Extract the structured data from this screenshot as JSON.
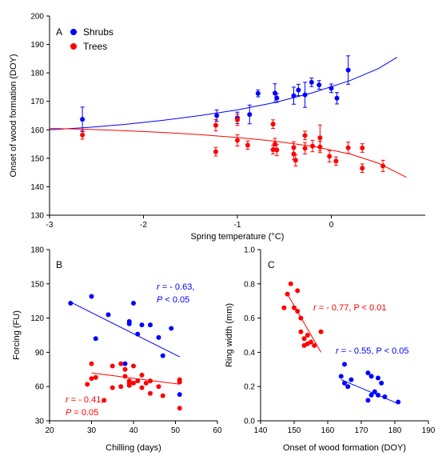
{
  "chart_data": [
    {
      "panel": "A",
      "type": "scatter",
      "xlabel": "Spring temperature (°C)",
      "ylabel": "Onset of wood formation (DOY)",
      "xlim": [
        -3,
        1
      ],
      "ylim": [
        130,
        200
      ],
      "xticks": [
        -3,
        -2,
        -1,
        0
      ],
      "yticks": [
        130,
        140,
        150,
        160,
        170,
        180,
        190,
        200
      ],
      "legend_position": "top-left",
      "series": [
        {
          "name": "Shrubs",
          "color": "#0000ff",
          "points": [
            {
              "x": -2.65,
              "y": 163.7,
              "err": 4.3
            },
            {
              "x": -1.22,
              "y": 165.0,
              "err": 2.0
            },
            {
              "x": -1.0,
              "y": 164.2,
              "err": 2.0
            },
            {
              "x": -0.87,
              "y": 165.4,
              "err": 3.3
            },
            {
              "x": -0.78,
              "y": 172.8,
              "err": 1.2
            },
            {
              "x": -0.6,
              "y": 172.9,
              "err": 3.3
            },
            {
              "x": -0.58,
              "y": 171.2,
              "err": 1.5
            },
            {
              "x": -0.4,
              "y": 172.0,
              "err": 3.0
            },
            {
              "x": -0.35,
              "y": 174.0,
              "err": 2.0
            },
            {
              "x": -0.28,
              "y": 172.3,
              "err": 4.4
            },
            {
              "x": -0.21,
              "y": 176.7,
              "err": 1.5
            },
            {
              "x": -0.13,
              "y": 175.8,
              "err": 1.5
            },
            {
              "x": 0.0,
              "y": 174.6,
              "err": 1.5
            },
            {
              "x": 0.06,
              "y": 171.1,
              "err": 2.0
            },
            {
              "x": 0.18,
              "y": 181.0,
              "err": 5.0
            }
          ],
          "fit": [
            [
              -3,
              160.0
            ],
            [
              -2.6,
              160.8
            ],
            [
              -2.2,
              161.9
            ],
            [
              -1.8,
              163.3
            ],
            [
              -1.4,
              165.0
            ],
            [
              -1.0,
              167.0
            ],
            [
              -0.6,
              169.6
            ],
            [
              -0.2,
              173.0
            ],
            [
              0.2,
              177.3
            ],
            [
              0.5,
              181.5
            ],
            [
              0.7,
              185.5
            ]
          ]
        },
        {
          "name": "Trees",
          "color": "#ff0000",
          "points": [
            {
              "x": -2.65,
              "y": 158.2,
              "err": 1.5
            },
            {
              "x": -1.23,
              "y": 161.6,
              "err": 2.0
            },
            {
              "x": -1.23,
              "y": 152.3,
              "err": 1.5
            },
            {
              "x": -1.0,
              "y": 163.5,
              "err": 2.0
            },
            {
              "x": -1.0,
              "y": 156.3,
              "err": 2.0
            },
            {
              "x": -0.89,
              "y": 154.6,
              "err": 1.5
            },
            {
              "x": -0.62,
              "y": 162.0,
              "err": 1.5
            },
            {
              "x": -0.6,
              "y": 155.0,
              "err": 2.0
            },
            {
              "x": -0.62,
              "y": 153.0,
              "err": 1.5
            },
            {
              "x": -0.58,
              "y": 152.9,
              "err": 2.0
            },
            {
              "x": -0.4,
              "y": 153.8,
              "err": 2.0
            },
            {
              "x": -0.4,
              "y": 151.5,
              "err": 2.0
            },
            {
              "x": -0.38,
              "y": 149.3,
              "err": 2.0
            },
            {
              "x": -0.28,
              "y": 153.5,
              "err": 2.0
            },
            {
              "x": -0.28,
              "y": 158.0,
              "err": 1.5
            },
            {
              "x": -0.2,
              "y": 154.3,
              "err": 2.0
            },
            {
              "x": -0.12,
              "y": 157.2,
              "err": 4.5
            },
            {
              "x": -0.12,
              "y": 154.0,
              "err": 2.0
            },
            {
              "x": -0.02,
              "y": 150.7,
              "err": 2.0
            },
            {
              "x": 0.05,
              "y": 149.0,
              "err": 1.5
            },
            {
              "x": 0.18,
              "y": 153.7,
              "err": 2.0
            },
            {
              "x": 0.33,
              "y": 153.6,
              "err": 1.5
            },
            {
              "x": 0.33,
              "y": 146.5,
              "err": 1.5
            },
            {
              "x": 0.55,
              "y": 147.3,
              "err": 2.0
            }
          ],
          "fit": [
            [
              -3,
              160.5
            ],
            [
              -2.6,
              160.2
            ],
            [
              -2.2,
              159.7
            ],
            [
              -1.8,
              159.1
            ],
            [
              -1.4,
              158.3
            ],
            [
              -1.0,
              157.3
            ],
            [
              -0.6,
              156.0
            ],
            [
              -0.2,
              154.2
            ],
            [
              0.2,
              151.5
            ],
            [
              0.5,
              148.3
            ],
            [
              0.8,
              143.3
            ]
          ]
        }
      ]
    },
    {
      "panel": "B",
      "type": "scatter",
      "xlabel": "Chilling (days)",
      "ylabel": "Forcing (FU)",
      "xlim": [
        20,
        60
      ],
      "ylim": [
        30,
        180
      ],
      "xticks": [
        20,
        30,
        40,
        50,
        60
      ],
      "yticks": [
        30,
        60,
        90,
        120,
        150,
        180
      ],
      "series": [
        {
          "color": "#0000ff",
          "points": [
            [
              25,
              133
            ],
            [
              30,
              139
            ],
            [
              31,
              102
            ],
            [
              34,
              123
            ],
            [
              38,
              80
            ],
            [
              39,
              115
            ],
            [
              39,
              117
            ],
            [
              40,
              133
            ],
            [
              41,
              106
            ],
            [
              42,
              114
            ],
            [
              44,
              114
            ],
            [
              46,
              103
            ],
            [
              47,
              87
            ],
            [
              49,
              111
            ],
            [
              51,
              53
            ]
          ],
          "fit": [
            [
              25,
              134
            ],
            [
              51,
              86
            ]
          ],
          "annotation_r": "r = - 0.63,",
          "annotation_p": "P < 0.05"
        },
        {
          "color": "#ff0000",
          "points": [
            [
              29,
              62
            ],
            [
              30,
              80
            ],
            [
              30,
              67
            ],
            [
              31,
              68
            ],
            [
              33,
              48
            ],
            [
              35,
              59
            ],
            [
              35,
              78
            ],
            [
              37,
              80
            ],
            [
              37,
              60
            ],
            [
              38,
              69
            ],
            [
              38,
              75
            ],
            [
              39,
              63
            ],
            [
              39,
              61
            ],
            [
              39,
              65
            ],
            [
              40,
              63
            ],
            [
              40,
              78
            ],
            [
              41,
              65
            ],
            [
              42,
              70
            ],
            [
              42,
              59
            ],
            [
              43,
              63
            ],
            [
              44,
              54
            ],
            [
              44,
              65
            ],
            [
              46,
              60
            ],
            [
              47,
              52
            ],
            [
              51,
              66
            ],
            [
              51,
              64
            ],
            [
              51,
              41
            ]
          ],
          "fit": [
            [
              30,
              72
            ],
            [
              51,
              62
            ]
          ],
          "annotation_r": "r = - 0.41,",
          "annotation_p": "P = 0.05"
        }
      ]
    },
    {
      "panel": "C",
      "type": "scatter",
      "xlabel": "Onset of wood formation (DOY)",
      "ylabel": "Ring width (mm)",
      "xlim": [
        140,
        190
      ],
      "ylim": [
        0.0,
        1.0
      ],
      "xticks": [
        140,
        150,
        160,
        170,
        180,
        190
      ],
      "yticks": [
        0.0,
        0.2,
        0.4,
        0.6,
        0.8,
        1.0
      ],
      "series": [
        {
          "color": "#ff0000",
          "points": [
            [
              147,
              0.66
            ],
            [
              148,
              0.74
            ],
            [
              149,
              0.8
            ],
            [
              150,
              0.66
            ],
            [
              151,
              0.64
            ],
            [
              151,
              0.76
            ],
            [
              152,
              0.6
            ],
            [
              152,
              0.52
            ],
            [
              153,
              0.48
            ],
            [
              153,
              0.44
            ],
            [
              154,
              0.5
            ],
            [
              154,
              0.45
            ],
            [
              155,
              0.46
            ],
            [
              156,
              0.44
            ],
            [
              158,
              0.52
            ]
          ],
          "fit": [
            [
              148,
              0.74
            ],
            [
              158,
              0.4
            ]
          ],
          "annotation_r": "r = - 0.77,",
          "annotation_p": "P < 0.01"
        },
        {
          "color": "#0000ff",
          "points": [
            [
              164,
              0.26
            ],
            [
              165,
              0.22
            ],
            [
              165,
              0.33
            ],
            [
              166,
              0.2
            ],
            [
              167,
              0.24
            ],
            [
              172,
              0.12
            ],
            [
              172,
              0.28
            ],
            [
              173,
              0.15
            ],
            [
              173,
              0.26
            ],
            [
              174,
              0.17
            ],
            [
              175,
              0.15
            ],
            [
              175,
              0.25
            ],
            [
              176,
              0.22
            ],
            [
              177,
              0.14
            ],
            [
              181,
              0.11
            ]
          ],
          "fit": [
            [
              164,
              0.24
            ],
            [
              181,
              0.1
            ]
          ],
          "annotation_r": "r = - 0.55,",
          "annotation_p": "P < 0.05"
        }
      ]
    }
  ],
  "labels": {
    "panel_a": "A",
    "panel_b": "B",
    "panel_c": "C",
    "legend_shrubs": "Shrubs",
    "legend_trees": "Trees"
  }
}
